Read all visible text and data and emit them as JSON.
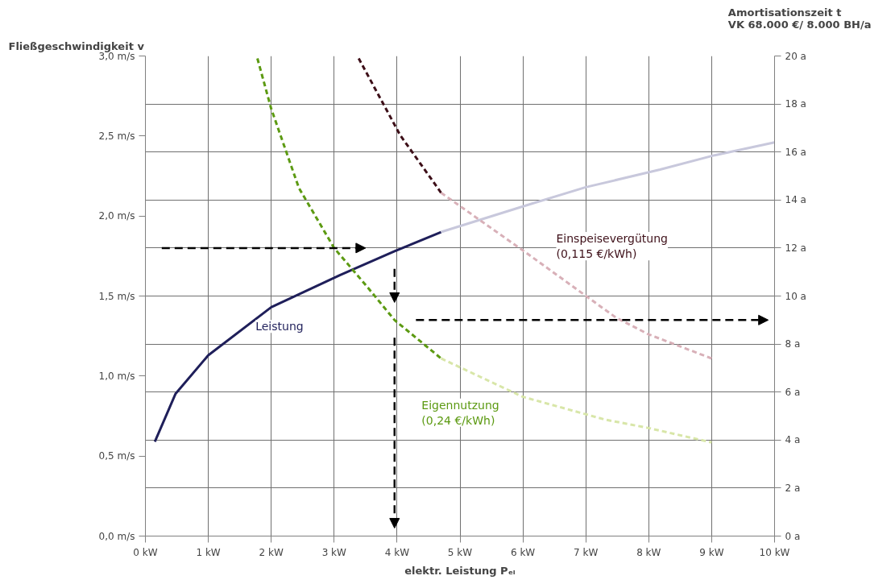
{
  "chart_data": {
    "type": "line",
    "ylabel": "Fließgeschwindigkeit v",
    "y2label": "Amortisationszeit t\nVK 68.000 €/ 8.000 BH/a",
    "xlabel": "elektr. Leistung Pₑₗ",
    "xlim": [
      0,
      10
    ],
    "ylim": [
      0,
      3
    ],
    "y2lim": [
      0,
      20
    ],
    "xticks": [
      {
        "value": 0,
        "label": "0 kW"
      },
      {
        "value": 1,
        "label": "1 kW"
      },
      {
        "value": 2,
        "label": "2 kW"
      },
      {
        "value": 3,
        "label": "3 kW"
      },
      {
        "value": 4,
        "label": "4 kW"
      },
      {
        "value": 5,
        "label": "5 kW"
      },
      {
        "value": 6,
        "label": "6 kW"
      },
      {
        "value": 7,
        "label": "7 kW"
      },
      {
        "value": 8,
        "label": "8 kW"
      },
      {
        "value": 9,
        "label": "9 kW"
      },
      {
        "value": 10,
        "label": "10 kW"
      }
    ],
    "yticks": [
      {
        "value": 0,
        "label": "0,0 m/s"
      },
      {
        "value": 0.5,
        "label": "0,5 m/s"
      },
      {
        "value": 1,
        "label": "1,0 m/s"
      },
      {
        "value": 1.5,
        "label": "1,5 m/s"
      },
      {
        "value": 2,
        "label": "2,0 m/s"
      },
      {
        "value": 2.5,
        "label": "2,5 m/s"
      },
      {
        "value": 3,
        "label": "3,0 m/s"
      }
    ],
    "y2ticks": [
      {
        "value": 0,
        "label": "0 a"
      },
      {
        "value": 2,
        "label": "2 a"
      },
      {
        "value": 4,
        "label": "4 a"
      },
      {
        "value": 6,
        "label": "6 a"
      },
      {
        "value": 8,
        "label": "8 a"
      },
      {
        "value": 10,
        "label": "10 a"
      },
      {
        "value": 12,
        "label": "12 a"
      },
      {
        "value": 14,
        "label": "14 a"
      },
      {
        "value": 16,
        "label": "16 a"
      },
      {
        "value": 18,
        "label": "18 a"
      },
      {
        "value": 20,
        "label": "20 a"
      }
    ],
    "grid": true,
    "series": [
      {
        "color": "#1f1f5a",
        "line_style": "solid",
        "x": [
          0.15,
          0.48,
          1.0,
          2.0,
          3.09,
          3.96,
          4.7
        ],
        "values": [
          0.59,
          0.89,
          1.13,
          1.43,
          1.63,
          1.78,
          1.9
        ]
      },
      {
        "color": "#5c9a12",
        "line_style": "dashed",
        "axis": "y2",
        "x": [
          1.78,
          2.0,
          2.44,
          3.0,
          3.52,
          3.96,
          4.7
        ],
        "values": [
          19.9,
          17.8,
          14.5,
          12.0,
          10.4,
          9.0,
          7.4
        ]
      },
      {
        "color": "#3d0f18",
        "line_style": "dashed",
        "axis": "y2",
        "x": [
          3.39,
          4.05,
          4.7
        ],
        "values": [
          19.9,
          16.7,
          14.3
        ]
      },
      {
        "color": "#c8c8dc",
        "line_style": "solid",
        "x": [
          4.7,
          6.0,
          7.0,
          8.18,
          9.05,
          10.0
        ],
        "values": [
          1.9,
          2.06,
          2.18,
          2.29,
          2.38,
          2.46
        ]
      },
      {
        "color": "#d8e6a8",
        "line_style": "dashed",
        "axis": "y2",
        "x": [
          4.7,
          6.0,
          7.31,
          8.0,
          9.0
        ],
        "values": [
          7.4,
          5.8,
          4.85,
          4.5,
          3.9
        ]
      },
      {
        "color": "#d8b0b8",
        "line_style": "dashed",
        "axis": "y2",
        "x": [
          4.7,
          6.0,
          7.48,
          8.0,
          9.0
        ],
        "values": [
          14.3,
          11.9,
          9.1,
          8.4,
          7.4
        ]
      }
    ],
    "annotations": [
      "Leistung",
      "Eigennutzung\n(0,24 €/kWh)",
      "Einspeisevergütung\n(0,115 €/kWh)"
    ]
  }
}
